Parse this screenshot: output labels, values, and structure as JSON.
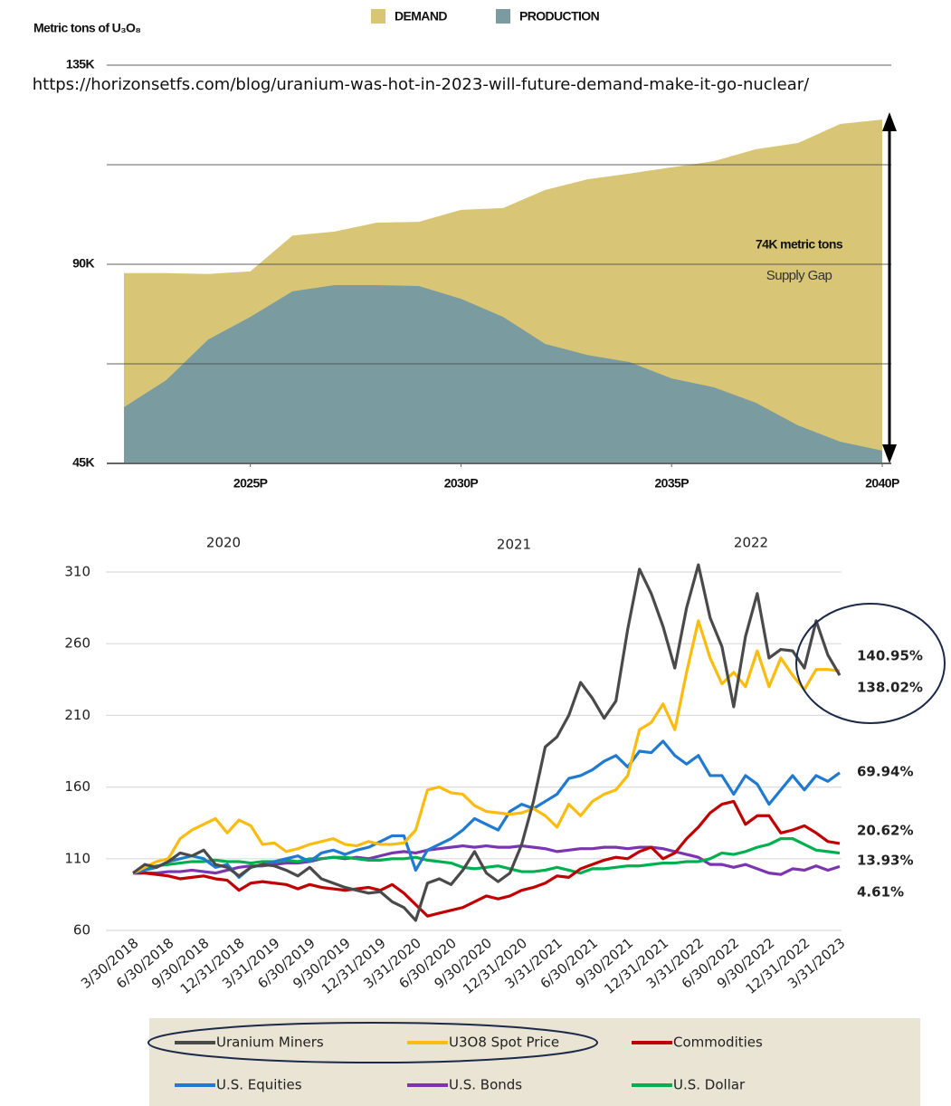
{
  "chart_data": [
    {
      "type": "area",
      "y_axis_label": "Metric tons of U₃O₈",
      "source": "https://horizonsetfs.com/blog/uranium-was-hot-in-2023-will-future-demand-make-it-go-nuclear/",
      "annotations": [
        "74K metric tons",
        "Supply Gap"
      ],
      "x": [
        2022,
        2023,
        2024,
        2025,
        2026,
        2027,
        2028,
        2029,
        2030,
        2031,
        2032,
        2033,
        2034,
        2035,
        2036,
        2037,
        2038,
        2039,
        2040
      ],
      "xlim": [
        2022,
        2040
      ],
      "xticks": [
        {
          "value": 2025,
          "label": "2025P"
        },
        {
          "value": 2030,
          "label": "2030P"
        },
        {
          "value": 2035,
          "label": "2035P"
        },
        {
          "value": 2040,
          "label": "2040P"
        }
      ],
      "ylim": [
        45,
        135
      ],
      "yticks": [
        {
          "value": 45,
          "label": "45K"
        },
        {
          "value": 67.5,
          "label": null
        },
        {
          "value": 90,
          "label": "90K"
        },
        {
          "value": 112.5,
          "label": null
        },
        {
          "value": 135,
          "label": "135K"
        }
      ],
      "grid": true,
      "series": [
        {
          "name": "DEMAND",
          "color": "#d8c676",
          "values": [
            88,
            88,
            87.8,
            88.4,
            96.5,
            97.4,
            99.4,
            99.6,
            102.3,
            102.7,
            106.8,
            109.2,
            110.5,
            111.9,
            113.3,
            116,
            117.4,
            121.7,
            122.7
          ]
        },
        {
          "name": "PRODUCTION",
          "color": "#7a9ca1",
          "values": [
            57.7,
            63.8,
            73,
            78.1,
            83.9,
            85.3,
            85.3,
            85.1,
            82.2,
            78.1,
            72,
            69.5,
            67.9,
            64.2,
            62.2,
            58.7,
            53.6,
            49.9,
            47.9
          ]
        }
      ]
    },
    {
      "type": "line",
      "annotations": [
        "2020",
        "2021",
        "2022"
      ],
      "categories": [
        "3/30/2018",
        null,
        null,
        "6/30/2018",
        null,
        null,
        "9/30/2018",
        null,
        null,
        "12/31/2018",
        null,
        null,
        "3/31/2019",
        null,
        null,
        "6/30/2019",
        null,
        null,
        "9/30/2019",
        null,
        null,
        "12/31/2019",
        null,
        null,
        "3/31/2020",
        null,
        null,
        "6/30/2020",
        null,
        null,
        "9/30/2020",
        null,
        null,
        "12/31/2020",
        null,
        null,
        "3/31/2021",
        null,
        null,
        "6/30/2021",
        null,
        null,
        "9/30/2021",
        null,
        null,
        "12/31/2021",
        null,
        null,
        "3/31/2022",
        null,
        null,
        "6/30/2022",
        null,
        null,
        "9/30/2022",
        null,
        null,
        "12/31/2022",
        null,
        null,
        "3/31/2023"
      ],
      "ylim": [
        60,
        310
      ],
      "yticks": [
        60,
        110,
        160,
        210,
        260,
        310
      ],
      "grid": true,
      "series": [
        {
          "name": "Uranium Miners",
          "color": "#4a4a4a",
          "end_label": "138.02%",
          "values": [
            100,
            106,
            104,
            108,
            114,
            112,
            116,
            106,
            104,
            98,
            104,
            106,
            105,
            102,
            98,
            104,
            96,
            93,
            90,
            88,
            86,
            87,
            80,
            76,
            67,
            93,
            96,
            92,
            102,
            115,
            100,
            94,
            100,
            120,
            150,
            188,
            195,
            210,
            233,
            222,
            208,
            220,
            270,
            312,
            295,
            272,
            243,
            285,
            315,
            278,
            258,
            216,
            265,
            295,
            250,
            256,
            255,
            243,
            276,
            252,
            238.02
          ]
        },
        {
          "name": "U3O8 Spot Price",
          "color": "#fbbc0f",
          "end_label": "140.95%",
          "values": [
            100,
            104,
            108,
            110,
            124,
            130,
            134,
            138,
            128,
            137,
            133,
            120,
            121,
            115,
            117,
            120,
            122,
            124,
            120,
            119,
            122,
            120,
            120,
            121,
            130,
            158,
            160,
            156,
            155,
            147,
            143,
            142,
            141,
            142,
            145,
            140,
            132,
            148,
            140,
            150,
            155,
            158,
            168,
            200,
            205,
            218,
            200,
            240,
            276,
            250,
            232,
            240,
            230,
            255,
            230,
            250,
            238,
            228,
            242,
            242,
            240.95
          ]
        },
        {
          "name": "Commodities",
          "color": "#c00000",
          "end_label": "20.62%",
          "values": [
            100,
            100,
            99,
            98,
            96,
            97,
            98,
            96,
            95,
            88,
            93,
            94,
            93,
            92,
            89,
            92,
            90,
            89,
            88,
            89,
            90,
            88,
            92,
            86,
            78,
            70,
            72,
            74,
            76,
            80,
            84,
            82,
            84,
            88,
            90,
            93,
            98,
            97,
            103,
            106,
            109,
            111,
            110,
            115,
            118,
            110,
            114,
            124,
            132,
            142,
            148,
            150,
            134,
            140,
            140,
            128,
            130,
            133,
            128,
            122,
            120.62
          ]
        },
        {
          "name": "U.S. Equities",
          "color": "#1f7ad0",
          "end_label": "69.94%",
          "values": [
            100,
            102,
            104,
            108,
            110,
            112,
            110,
            104,
            106,
            97,
            104,
            106,
            108,
            110,
            112,
            108,
            114,
            116,
            113,
            116,
            118,
            122,
            126,
            126,
            102,
            116,
            120,
            124,
            130,
            138,
            134,
            130,
            143,
            148,
            145,
            150,
            155,
            166,
            168,
            172,
            178,
            182,
            174,
            185,
            184,
            192,
            182,
            176,
            182,
            168,
            168,
            155,
            168,
            162,
            148,
            158,
            168,
            158,
            168,
            164,
            169.94
          ]
        },
        {
          "name": "U.S. Bonds",
          "color": "#7b35b0",
          "end_label": "4.61%",
          "values": [
            100,
            100,
            100,
            101,
            101,
            102,
            101,
            100,
            102,
            104,
            105,
            105,
            106,
            107,
            107,
            108,
            110,
            111,
            110,
            111,
            110,
            112,
            114,
            115,
            114,
            116,
            117,
            118,
            119,
            118,
            119,
            118,
            118,
            119,
            118,
            117,
            115,
            116,
            117,
            117,
            118,
            118,
            117,
            118,
            118,
            117,
            115,
            113,
            111,
            106,
            106,
            104,
            106,
            103,
            100,
            99,
            103,
            102,
            105,
            102,
            104.61
          ]
        },
        {
          "name": "U.S. Dollar",
          "color": "#00b050",
          "end_label": "13.93%",
          "values": [
            100,
            103,
            105,
            106,
            107,
            108,
            108,
            109,
            108,
            108,
            107,
            108,
            108,
            109,
            108,
            110,
            110,
            111,
            111,
            110,
            109,
            109,
            110,
            110,
            111,
            109,
            108,
            107,
            104,
            103,
            104,
            105,
            103,
            101,
            101,
            102,
            104,
            102,
            100,
            103,
            103,
            104,
            105,
            105,
            106,
            107,
            107,
            108,
            108,
            110,
            114,
            113,
            115,
            118,
            120,
            124,
            124,
            120,
            116,
            115,
            113.93
          ]
        }
      ]
    }
  ]
}
